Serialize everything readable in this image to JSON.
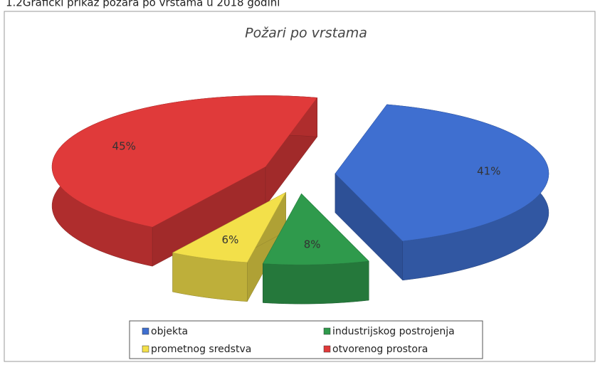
{
  "caption": "1.2Grafički prikaz požara po vrstama u 2018 godini",
  "chart_data": {
    "type": "pie",
    "title": "Požari po vrstama",
    "categories": [
      "objekta",
      "industrijskog postrojenja",
      "prometnog sredstva",
      "otvorenog prostora"
    ],
    "values": [
      41,
      8,
      6,
      45
    ],
    "value_labels": [
      "41%",
      "8%",
      "6%",
      "45%"
    ],
    "colors": [
      "#3f6fd0",
      "#2f9a4c",
      "#f3e04a",
      "#e03a3a"
    ],
    "legend": "bottom"
  }
}
